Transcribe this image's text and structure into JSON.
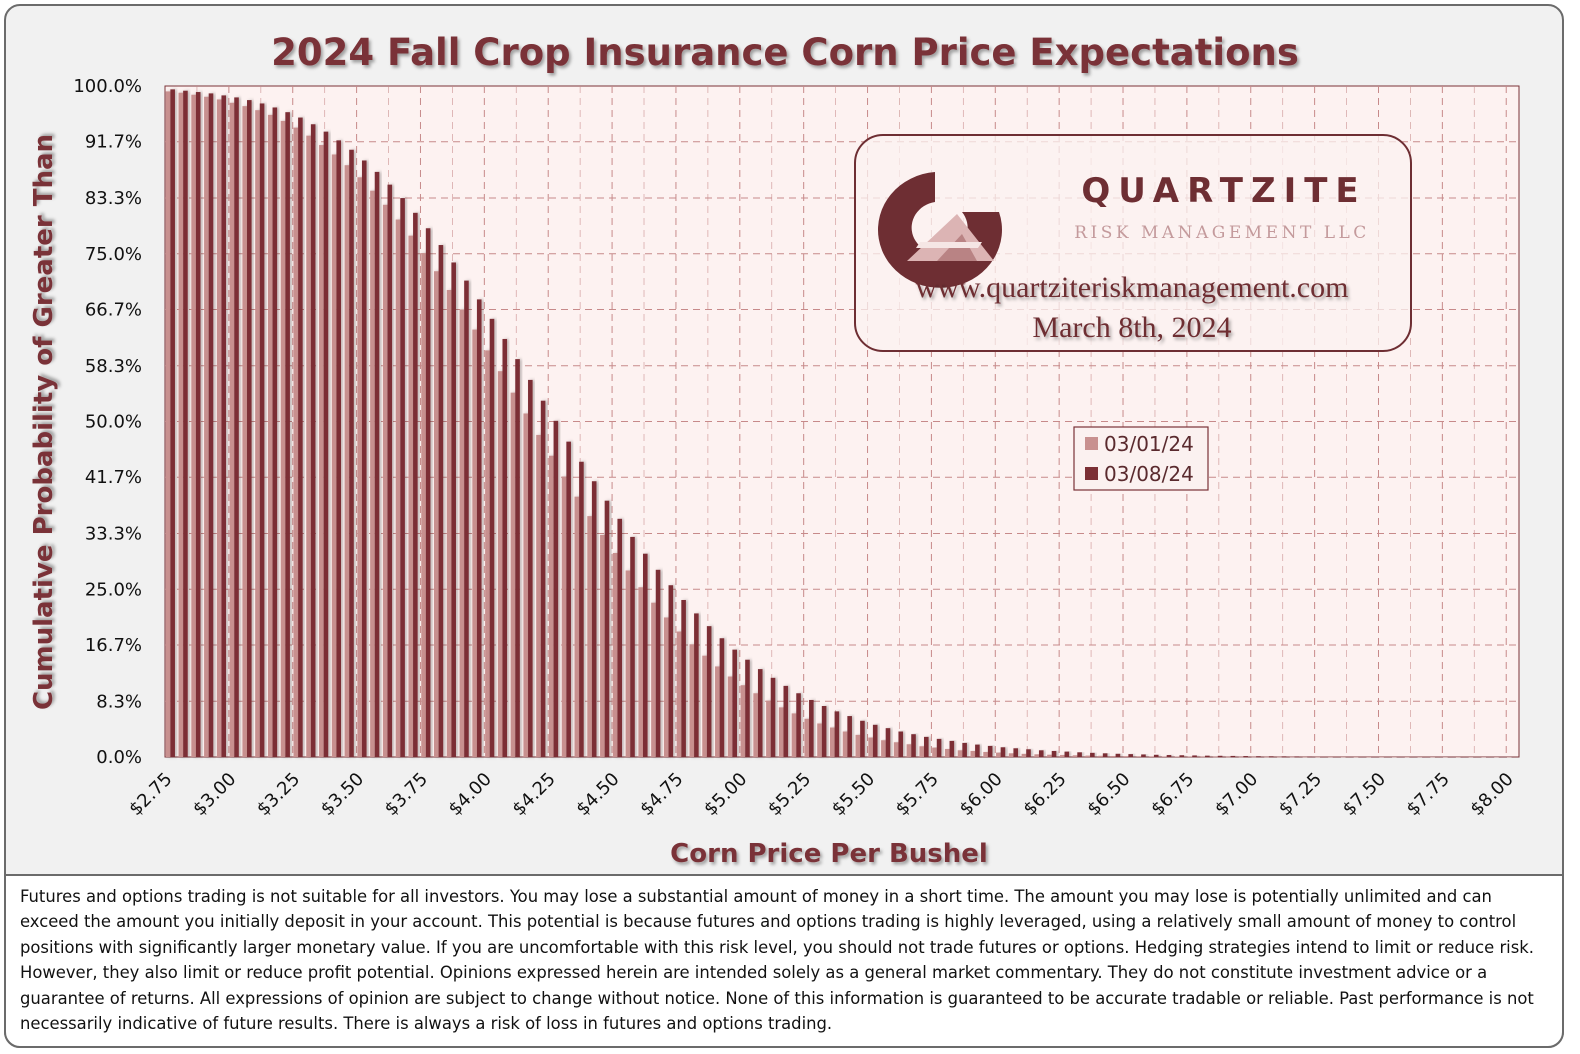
{
  "colors": {
    "series_old": "#c8908f",
    "series_new": "#7b2f35",
    "accent": "#7a3237",
    "plot_bg": "#fdf2f1",
    "grid": "#c78a8a"
  },
  "logo": {
    "name": "QUARTZITE",
    "sub": "RISK MANAGEMENT LLC",
    "url": "www.quartziteriskmanagement.com",
    "date": "March 8th, 2024",
    "icon": "quartzite-q-logo-icon"
  },
  "disclaimer": "Futures and options trading is not suitable for all investors. You may lose a substantial amount of money in a short time. The amount you may lose is potentially unlimited and can exceed the amount you initially deposit in your account. This potential is because futures and options trading is highly leveraged, using a relatively small amount of money to control positions with significantly larger monetary value. If you are uncomfortable with this risk level, you should not trade futures or options. Hedging strategies intend to limit or reduce risk. However, they also limit or reduce profit potential. Opinions expressed herein are intended solely as a general market commentary. They do not constitute investment advice or a guarantee of returns. All expressions of opinion are subject to change without notice. None of this information is guaranteed to be accurate tradable or reliable. Past performance is not necessarily indicative of future results. There is always a risk of loss in futures and options trading.",
  "chart_data": {
    "type": "bar",
    "title": "2024 Fall Crop Insurance Corn Price Expectations",
    "xlabel": "Corn Price Per Bushel",
    "ylabel": "Cumulative Probability of Greater Than",
    "xlim": [
      2.75,
      8.05
    ],
    "ylim": [
      0,
      100
    ],
    "x_step": 0.05,
    "x_tick_labels": [
      "$2.75",
      "$3.00",
      "$3.25",
      "$3.50",
      "$3.75",
      "$4.00",
      "$4.25",
      "$4.50",
      "$4.75",
      "$5.00",
      "$5.25",
      "$5.50",
      "$5.75",
      "$6.00",
      "$6.25",
      "$6.50",
      "$6.75",
      "$7.00",
      "$7.25",
      "$7.50",
      "$7.75",
      "$8.00"
    ],
    "y_tick_labels": [
      "100.0%",
      "91.7%",
      "83.3%",
      "75.0%",
      "66.7%",
      "58.3%",
      "50.0%",
      "41.7%",
      "33.3%",
      "25.0%",
      "16.7%",
      "8.3%",
      "0.0%"
    ],
    "y_tick_values": [
      100,
      91.7,
      83.3,
      75,
      66.7,
      58.3,
      50,
      41.7,
      33.3,
      25,
      16.7,
      8.3,
      0
    ],
    "legend_position": "center-right",
    "series": [
      {
        "name": "03/01/24",
        "color": "#c8908f",
        "values": [
          99.2,
          99.0,
          98.7,
          98.4,
          98.0,
          97.5,
          97.0,
          96.4,
          95.7,
          94.8,
          93.8,
          92.6,
          91.2,
          89.8,
          88.2,
          86.4,
          84.4,
          82.3,
          80.1,
          77.7,
          75.1,
          72.4,
          69.6,
          66.7,
          63.7,
          60.6,
          57.5,
          54.3,
          51.2,
          48.0,
          44.9,
          41.8,
          38.8,
          35.9,
          33.1,
          30.4,
          27.8,
          25.3,
          23.0,
          20.8,
          18.7,
          16.8,
          15.1,
          13.5,
          12.0,
          10.7,
          9.5,
          8.4,
          7.4,
          6.5,
          5.7,
          5.0,
          4.4,
          3.8,
          3.3,
          2.9,
          2.5,
          2.2,
          1.9,
          1.6,
          1.4,
          1.2,
          1.0,
          0.9,
          0.75,
          0.65,
          0.55,
          0.47,
          0.4,
          0.34,
          0.29,
          0.25,
          0.21,
          0.18,
          0.15,
          0.13,
          0.11,
          0.09,
          0.08,
          0.07,
          0.06,
          0.05,
          0.04,
          0.035,
          0.03,
          0.025,
          0.02,
          0.018,
          0.015,
          0.012,
          0.01,
          0.009,
          0.008,
          0.007,
          0.006,
          0.005,
          0.004,
          0.004,
          0.003,
          0.003,
          0.002,
          0.002,
          0.002,
          0.001,
          0.001,
          0.001
        ]
      },
      {
        "name": "03/08/24",
        "color": "#7b2f35",
        "values": [
          99.5,
          99.3,
          99.1,
          98.9,
          98.6,
          98.3,
          97.9,
          97.4,
          96.8,
          96.1,
          95.3,
          94.3,
          93.2,
          91.9,
          90.5,
          88.9,
          87.2,
          85.3,
          83.3,
          81.1,
          78.8,
          76.3,
          73.7,
          71.0,
          68.2,
          65.3,
          62.3,
          59.3,
          56.2,
          53.1,
          50.1,
          47.0,
          44.0,
          41.1,
          38.2,
          35.5,
          32.8,
          30.3,
          27.9,
          25.6,
          23.4,
          21.4,
          19.5,
          17.7,
          16.0,
          14.5,
          13.1,
          11.8,
          10.6,
          9.5,
          8.5,
          7.6,
          6.8,
          6.1,
          5.4,
          4.8,
          4.3,
          3.8,
          3.4,
          3.0,
          2.7,
          2.4,
          2.1,
          1.85,
          1.65,
          1.45,
          1.3,
          1.15,
          1.0,
          0.9,
          0.8,
          0.7,
          0.62,
          0.55,
          0.48,
          0.43,
          0.38,
          0.33,
          0.29,
          0.26,
          0.23,
          0.2,
          0.18,
          0.16,
          0.14,
          0.12,
          0.11,
          0.1,
          0.09,
          0.08,
          0.07,
          0.06,
          0.055,
          0.05,
          0.045,
          0.04,
          0.035,
          0.03,
          0.028,
          0.025,
          0.022,
          0.02,
          0.018,
          0.016,
          0.015,
          0.013
        ]
      }
    ]
  }
}
